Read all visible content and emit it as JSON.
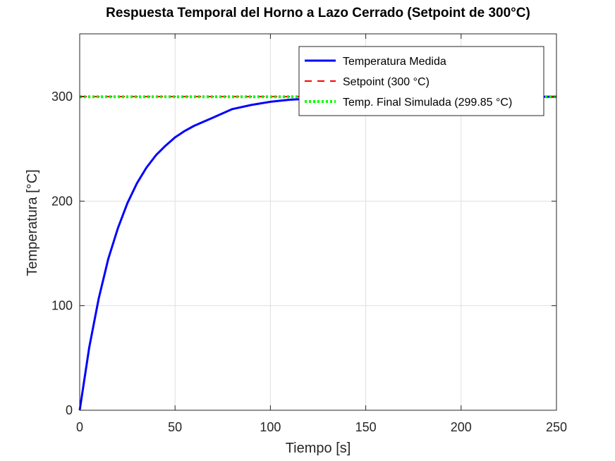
{
  "chart_data": {
    "type": "line",
    "title": "Respuesta Temporal del Horno a Lazo Cerrado (Setpoint de 300°C)",
    "xlabel": "Tiempo [s]",
    "ylabel": "Temperatura [°C]",
    "xlim": [
      0,
      250
    ],
    "ylim": [
      0,
      360
    ],
    "xticks": [
      0,
      50,
      100,
      150,
      200,
      250
    ],
    "yticks": [
      0,
      100,
      200,
      300
    ],
    "grid": true,
    "legend_position": "top-right",
    "series": [
      {
        "name": "Temperatura Medida",
        "style": "solid",
        "color": "#0000ff",
        "x": [
          0,
          5,
          10,
          15,
          20,
          25,
          30,
          35,
          40,
          45,
          50,
          55,
          60,
          70,
          80,
          90,
          100,
          110,
          120,
          130,
          140,
          150,
          160,
          170,
          180,
          190,
          200,
          210,
          220,
          230,
          240,
          250
        ],
        "y": [
          0,
          60,
          107,
          145,
          174,
          198,
          217,
          232,
          244,
          253,
          261,
          267,
          272,
          280,
          288,
          292,
          295,
          297,
          298,
          299,
          299.4,
          299.6,
          299.7,
          299.8,
          299.8,
          299.85,
          299.85,
          299.85,
          299.85,
          299.85,
          299.85,
          299.85
        ]
      },
      {
        "name": "Setpoint (300 °C)",
        "style": "dashed",
        "color": "#ff0000",
        "x": [
          0,
          250
        ],
        "y": [
          300,
          300
        ]
      },
      {
        "name": "Temp. Final Simulada (299.85 °C)",
        "style": "dotted",
        "color": "#00ff00",
        "x": [
          0,
          250
        ],
        "y": [
          299.85,
          299.85
        ]
      }
    ]
  }
}
